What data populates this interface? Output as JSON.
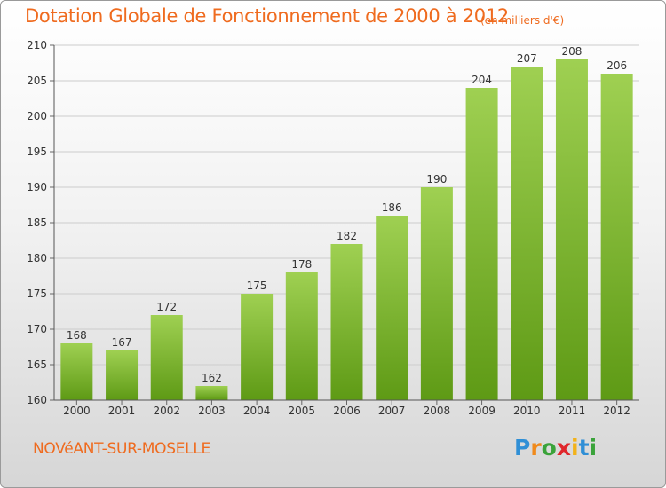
{
  "header": {
    "title": "Dotation Globale de Fonctionnement de 2000 à 2012",
    "unit": "(en milliers d'€)"
  },
  "footer": {
    "commune": "NOVéANT-SUR-MOSELLE",
    "logo_text": "Proxiti"
  },
  "colors": {
    "title": "#ef6b1f",
    "bar_top": "#9fd052",
    "bar_bottom": "#5e9a15",
    "grid": "#cccccc",
    "axis_text": "#333333"
  },
  "chart_data": {
    "type": "bar",
    "title": "Dotation Globale de Fonctionnement de 2000 à 2012",
    "subtitle": "(en milliers d'€)",
    "xlabel": "",
    "ylabel": "",
    "categories": [
      "2000",
      "2001",
      "2002",
      "2003",
      "2004",
      "2005",
      "2006",
      "2007",
      "2008",
      "2009",
      "2010",
      "2011",
      "2012"
    ],
    "values": [
      168,
      167,
      172,
      162,
      175,
      178,
      182,
      186,
      190,
      204,
      207,
      208,
      206
    ],
    "ylim": [
      160,
      210
    ],
    "yticks": [
      160,
      165,
      170,
      175,
      180,
      185,
      190,
      195,
      200,
      205,
      210
    ],
    "grid": true,
    "data_labels": true
  }
}
